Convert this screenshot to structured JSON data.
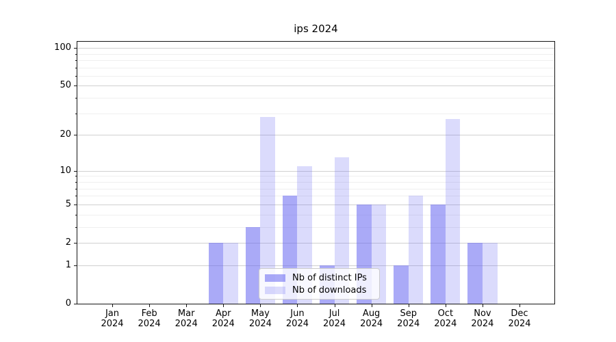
{
  "chart_data": {
    "type": "bar",
    "title": "ips 2024",
    "categories": [
      "Jan",
      "Feb",
      "Mar",
      "Apr",
      "May",
      "Jun",
      "Jul",
      "Aug",
      "Sep",
      "Oct",
      "Nov",
      "Dec"
    ],
    "year_label": "2024",
    "series": [
      {
        "name": "Nb of distinct IPs",
        "color": "rgba(100,100,240,0.55)",
        "values": [
          0,
          0,
          0,
          2,
          3,
          6,
          1,
          5,
          1,
          5,
          2,
          0
        ]
      },
      {
        "name": "Nb of downloads",
        "color": "rgba(100,100,240,0.23)",
        "values": [
          0,
          0,
          0,
          2,
          28,
          11,
          13,
          5,
          6,
          27,
          2,
          0
        ]
      }
    ],
    "yscale": "log1p",
    "ylim": [
      0,
      112
    ],
    "yticks": [
      0,
      1,
      2,
      5,
      10,
      20,
      50,
      100
    ],
    "minor_yticks": [
      3,
      4,
      6,
      7,
      8,
      9,
      30,
      40,
      60,
      70,
      80,
      90
    ],
    "grid": "horizontal",
    "legend_position": "lower-center-inside"
  },
  "colors": {
    "background": "#ffffff",
    "axis": "#141414",
    "text": "#000000",
    "grid_major": "#d0d0d0",
    "grid_minor": "#efefef",
    "legend_border": "#cccccc",
    "legend_bg": "rgba(255,255,255,0.8)"
  }
}
